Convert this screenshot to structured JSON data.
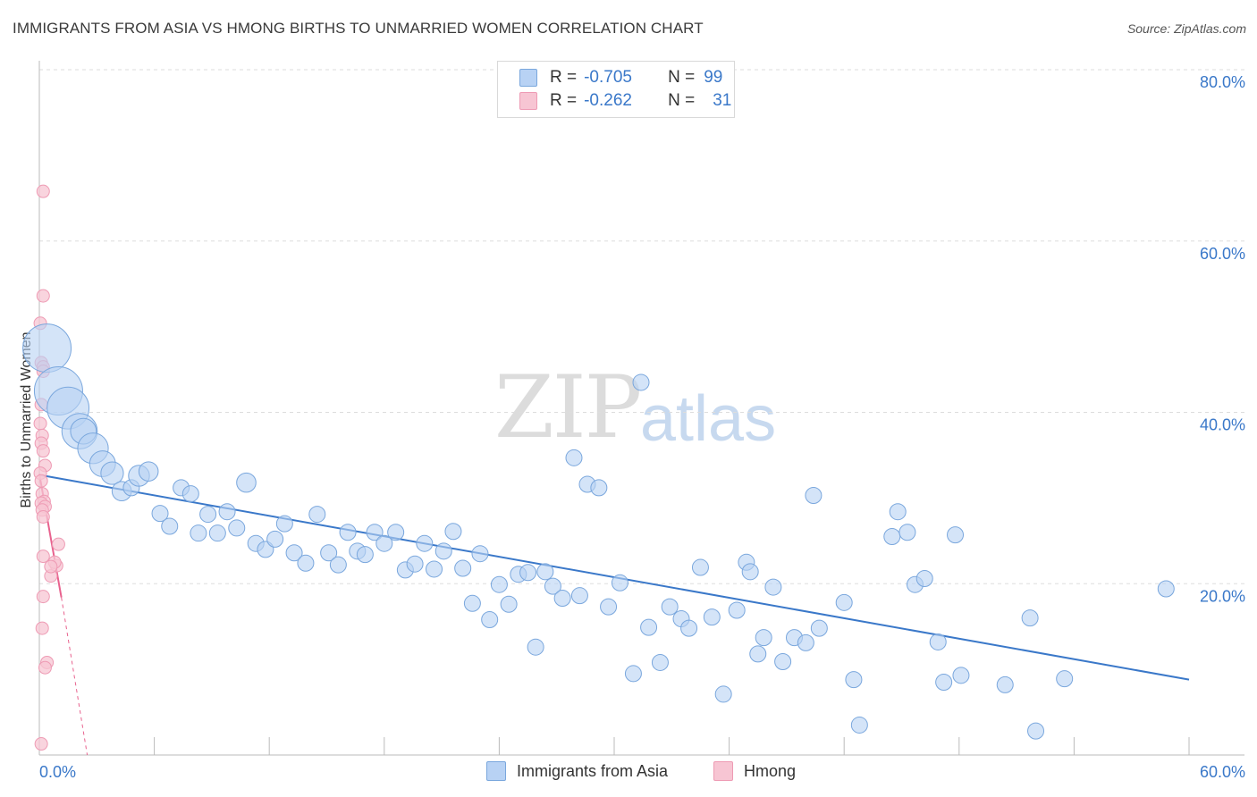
{
  "header": {
    "title": "IMMIGRANTS FROM ASIA VS HMONG BIRTHS TO UNMARRIED WOMEN CORRELATION CHART",
    "source": "Source: ZipAtlas.com"
  },
  "watermark": {
    "zip": "ZIP",
    "atlas": "atlas"
  },
  "colors": {
    "blue_fill": "#b8d2f4",
    "blue_stroke": "#7aa7dd",
    "blue_line": "#3a78c9",
    "pink_fill": "#f7c5d3",
    "pink_stroke": "#ee9bb4",
    "pink_line": "#e8628e",
    "axis_label": "#3a78c9",
    "grid": "#dddddd"
  },
  "legend_top": {
    "rows": [
      {
        "r_label": "R =",
        "r_value": "-0.705",
        "n_label": "N =",
        "n_value": "99",
        "color": "#b8d2f4"
      },
      {
        "r_label": "R =",
        "r_value": "-0.262",
        "n_label": "N =",
        "n_value": "31",
        "color": "#f7c5d3"
      }
    ]
  },
  "legend_bottom": [
    {
      "label": "Immigrants from Asia",
      "color": "#b8d2f4"
    },
    {
      "label": "Hmong",
      "color": "#f7c5d3"
    }
  ],
  "chart_data": {
    "type": "scatter",
    "title": "IMMIGRANTS FROM ASIA VS HMONG BIRTHS TO UNMARRIED WOMEN CORRELATION CHART",
    "xlabel": "",
    "ylabel": "Births to Unmarried Women",
    "xlim": [
      0,
      60
    ],
    "ylim": [
      0,
      80
    ],
    "x_tick_labels": [
      "0.0%",
      "60.0%"
    ],
    "y_tick_labels": [
      "20.0%",
      "40.0%",
      "60.0%",
      "80.0%"
    ],
    "y_ticks": [
      20,
      40,
      60,
      80
    ],
    "series": [
      {
        "name": "Immigrants from Asia",
        "r": -0.705,
        "n": 99,
        "trend": {
          "x": [
            0,
            60
          ],
          "y": [
            32.7,
            8.8
          ],
          "dashed": false
        },
        "points": [
          [
            0.4,
            47.5,
            3
          ],
          [
            1.0,
            42.5,
            3
          ],
          [
            1.5,
            40.5,
            2.6
          ],
          [
            2.1,
            37.8,
            2.2
          ],
          [
            2.3,
            37.8,
            1.6
          ],
          [
            2.8,
            35.8,
            1.9
          ],
          [
            3.3,
            34.0,
            1.6
          ],
          [
            3.8,
            32.9,
            1.4
          ],
          [
            4.3,
            30.8,
            1.2
          ],
          [
            4.8,
            31.2,
            1.0
          ],
          [
            5.2,
            32.6,
            1.3
          ],
          [
            5.7,
            33.1,
            1.2
          ],
          [
            6.3,
            28.2,
            1.0
          ],
          [
            6.8,
            26.7,
            1.0
          ],
          [
            7.4,
            31.2,
            1.0
          ],
          [
            7.9,
            30.5,
            1.0
          ],
          [
            8.3,
            25.9,
            1.0
          ],
          [
            8.8,
            28.1,
            1.0
          ],
          [
            9.3,
            25.9,
            1.0
          ],
          [
            9.8,
            28.4,
            1.0
          ],
          [
            10.3,
            26.5,
            1.0
          ],
          [
            10.8,
            31.8,
            1.2
          ],
          [
            11.3,
            24.7,
            1.0
          ],
          [
            11.8,
            24.0,
            1.0
          ],
          [
            12.3,
            25.2,
            1.0
          ],
          [
            12.8,
            27.0,
            1.0
          ],
          [
            13.3,
            23.6,
            1.0
          ],
          [
            13.9,
            22.4,
            1.0
          ],
          [
            14.5,
            28.1,
            1.0
          ],
          [
            15.1,
            23.6,
            1.0
          ],
          [
            15.6,
            22.2,
            1.0
          ],
          [
            16.1,
            26.0,
            1.0
          ],
          [
            16.6,
            23.8,
            1.0
          ],
          [
            17.0,
            23.4,
            1.0
          ],
          [
            17.5,
            26.0,
            1.0
          ],
          [
            18.0,
            24.7,
            1.0
          ],
          [
            18.6,
            26.0,
            1.0
          ],
          [
            19.1,
            21.6,
            1.0
          ],
          [
            19.6,
            22.3,
            1.0
          ],
          [
            20.1,
            24.7,
            1.0
          ],
          [
            20.6,
            21.7,
            1.0
          ],
          [
            21.1,
            23.8,
            1.0
          ],
          [
            21.6,
            26.1,
            1.0
          ],
          [
            22.1,
            21.8,
            1.0
          ],
          [
            22.6,
            17.7,
            1.0
          ],
          [
            23.0,
            23.5,
            1.0
          ],
          [
            23.5,
            15.8,
            1.0
          ],
          [
            24.0,
            19.9,
            1.0
          ],
          [
            24.5,
            17.6,
            1.0
          ],
          [
            25.0,
            21.1,
            1.0
          ],
          [
            25.5,
            21.3,
            1.0
          ],
          [
            25.9,
            12.6,
            1.0
          ],
          [
            26.4,
            21.4,
            1.0
          ],
          [
            26.8,
            19.7,
            1.0
          ],
          [
            27.3,
            18.3,
            1.0
          ],
          [
            27.9,
            34.7,
            1.0
          ],
          [
            28.2,
            18.6,
            1.0
          ],
          [
            28.6,
            31.6,
            1.0
          ],
          [
            29.2,
            31.2,
            1.0
          ],
          [
            29.7,
            17.3,
            1.0
          ],
          [
            30.3,
            20.1,
            1.0
          ],
          [
            31.0,
            9.5,
            1.0
          ],
          [
            31.4,
            43.5,
            1.0
          ],
          [
            31.8,
            14.9,
            1.0
          ],
          [
            32.4,
            10.8,
            1.0
          ],
          [
            32.9,
            17.3,
            1.0
          ],
          [
            33.5,
            15.9,
            1.0
          ],
          [
            33.9,
            14.8,
            1.0
          ],
          [
            34.5,
            21.9,
            1.0
          ],
          [
            35.1,
            16.1,
            1.0
          ],
          [
            35.7,
            7.1,
            1.0
          ],
          [
            36.4,
            16.9,
            1.0
          ],
          [
            36.9,
            22.5,
            1.0
          ],
          [
            37.1,
            21.4,
            1.0
          ],
          [
            37.5,
            11.8,
            1.0
          ],
          [
            37.8,
            13.7,
            1.0
          ],
          [
            38.3,
            19.6,
            1.0
          ],
          [
            38.8,
            10.9,
            1.0
          ],
          [
            39.4,
            13.7,
            1.0
          ],
          [
            40.0,
            13.1,
            1.0
          ],
          [
            40.4,
            30.3,
            1.0
          ],
          [
            40.7,
            14.8,
            1.0
          ],
          [
            42.0,
            17.8,
            1.0
          ],
          [
            42.5,
            8.8,
            1.0
          ],
          [
            42.8,
            3.5,
            1.0
          ],
          [
            44.5,
            25.5,
            1.0
          ],
          [
            44.8,
            28.4,
            1.0
          ],
          [
            45.3,
            26.0,
            1.0
          ],
          [
            45.7,
            19.9,
            1.0
          ],
          [
            46.2,
            20.6,
            1.0
          ],
          [
            46.9,
            13.2,
            1.0
          ],
          [
            47.2,
            8.5,
            1.0
          ],
          [
            47.8,
            25.7,
            1.0
          ],
          [
            48.1,
            9.3,
            1.0
          ],
          [
            50.4,
            8.2,
            1.0
          ],
          [
            51.7,
            16.0,
            1.0
          ],
          [
            52.0,
            2.8,
            1.0
          ],
          [
            53.5,
            8.9,
            1.0
          ],
          [
            58.8,
            19.4,
            1.0
          ]
        ]
      },
      {
        "name": "Hmong",
        "r": -0.262,
        "n": 31,
        "trend": {
          "x": [
            0,
            1.15
          ],
          "y": [
            32.8,
            18.4
          ],
          "dashed": false,
          "extension": {
            "x": [
              1.15,
              2.5
            ],
            "y": [
              18.4,
              0
            ]
          }
        },
        "points": [
          [
            0.2,
            65.8
          ],
          [
            0.2,
            53.6
          ],
          [
            0.05,
            50.4
          ],
          [
            0.1,
            45.8
          ],
          [
            0.2,
            45.3
          ],
          [
            0.2,
            44.8
          ],
          [
            0.1,
            40.9
          ],
          [
            0.05,
            38.7
          ],
          [
            0.15,
            37.3
          ],
          [
            0.1,
            36.4
          ],
          [
            0.2,
            35.5
          ],
          [
            0.3,
            33.8
          ],
          [
            0.05,
            32.9
          ],
          [
            0.1,
            32.0
          ],
          [
            0.15,
            30.5
          ],
          [
            0.25,
            29.6
          ],
          [
            0.1,
            29.4
          ],
          [
            0.3,
            29.0
          ],
          [
            0.15,
            28.6
          ],
          [
            0.2,
            23.2
          ],
          [
            0.9,
            22.1
          ],
          [
            0.8,
            22.5
          ],
          [
            1.0,
            24.6
          ],
          [
            0.6,
            20.9
          ],
          [
            0.2,
            18.5
          ],
          [
            0.15,
            14.8
          ],
          [
            0.4,
            10.8
          ],
          [
            0.3,
            10.2
          ],
          [
            0.1,
            1.3
          ],
          [
            0.6,
            22.0
          ],
          [
            0.2,
            27.8
          ]
        ]
      }
    ]
  }
}
